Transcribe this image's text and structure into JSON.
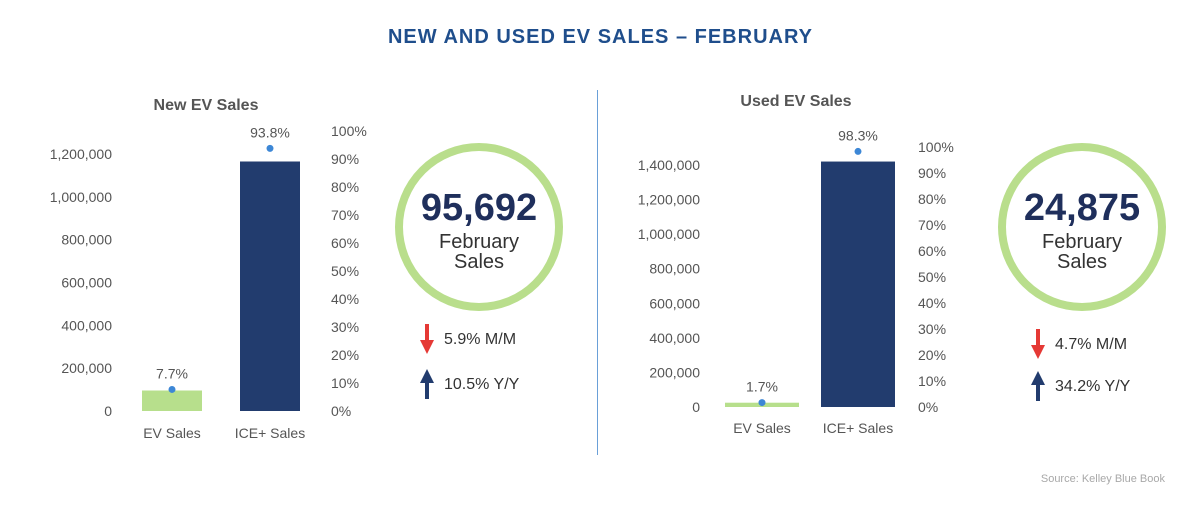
{
  "title": "NEW AND USED EV SALES – FEBRUARY",
  "source": "Source: Kelley Blue Book",
  "colors": {
    "ev": "#b7df8c",
    "ice": "#223c6e",
    "dot": "#3d87d6",
    "ring": "#b9de8c",
    "down": "#e53935",
    "up": "#223c6e"
  },
  "panels": [
    {
      "key": "new",
      "sales_number": "95,692",
      "sales_label_1": "February",
      "sales_label_2": "Sales",
      "stats": [
        {
          "direction": "down",
          "text": "5.9% M/M"
        },
        {
          "direction": "up",
          "text": "10.5% Y/Y"
        }
      ]
    },
    {
      "key": "used",
      "sales_number": "24,875",
      "sales_label_1": "February",
      "sales_label_2": "Sales",
      "stats": [
        {
          "direction": "down",
          "text": "4.7% M/M"
        },
        {
          "direction": "up",
          "text": "34.2% Y/Y"
        }
      ]
    }
  ],
  "chart_data": [
    {
      "type": "bar",
      "title": "New EV Sales",
      "categories": [
        "EV Sales",
        "ICE+ Sales"
      ],
      "series": [
        {
          "values": [
            95692,
            1165000
          ],
          "axis": "left"
        },
        {
          "values": [
            7.7,
            93.8
          ],
          "axis": "right",
          "style": "dot"
        }
      ],
      "share_labels": [
        "7.7%",
        "93.8%"
      ],
      "ylim": [
        0,
        1200000
      ],
      "yticks": [
        0,
        200000,
        400000,
        600000,
        800000,
        1000000,
        1200000
      ],
      "ytick_labels": [
        "0",
        "200,000",
        "400,000",
        "600,000",
        "800,000",
        "1,000,000",
        "1,200,000"
      ],
      "y2lim": [
        0,
        100
      ],
      "y2ticks": [
        0,
        10,
        20,
        30,
        40,
        50,
        60,
        70,
        80,
        90,
        100
      ],
      "y2tick_labels": [
        "0%",
        "10%",
        "20%",
        "30%",
        "40%",
        "50%",
        "60%",
        "70%",
        "80%",
        "90%",
        "100%"
      ],
      "grid": false
    },
    {
      "type": "bar",
      "title": "Used EV Sales",
      "categories": [
        "EV Sales",
        "ICE+ Sales"
      ],
      "series": [
        {
          "values": [
            24875,
            1420000
          ],
          "axis": "left"
        },
        {
          "values": [
            1.7,
            98.3
          ],
          "axis": "right",
          "style": "dot"
        }
      ],
      "share_labels": [
        "1.7%",
        "98.3%"
      ],
      "ylim": [
        0,
        1400000
      ],
      "yticks": [
        0,
        200000,
        400000,
        600000,
        800000,
        1000000,
        1200000,
        1400000
      ],
      "ytick_labels": [
        "0",
        "200,000",
        "400,000",
        "600,000",
        "800,000",
        "1,000,000",
        "1,200,000",
        "1,400,000"
      ],
      "y2lim": [
        0,
        100
      ],
      "y2ticks": [
        0,
        10,
        20,
        30,
        40,
        50,
        60,
        70,
        80,
        90,
        100
      ],
      "y2tick_labels": [
        "0%",
        "10%",
        "20%",
        "30%",
        "40%",
        "50%",
        "60%",
        "70%",
        "80%",
        "90%",
        "100%"
      ],
      "grid": false
    }
  ]
}
